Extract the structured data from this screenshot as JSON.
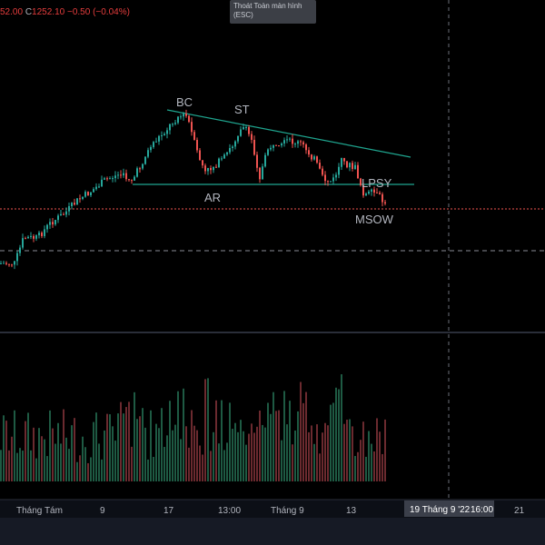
{
  "header": {
    "ohlc_partial": "52.00",
    "close_label": "C",
    "close_value": "1252.10",
    "change_value": "−0.50",
    "change_pct": "(−0.04%)"
  },
  "tooltip": {
    "line1": "Thoát Toàn màn hình",
    "line2": "(ESC)"
  },
  "annotations": [
    "BC",
    "ST",
    "AR",
    "LPSY",
    "MSOW"
  ],
  "x_axis": {
    "ticks": [
      "Tháng Tám",
      "9",
      "17",
      "13:00",
      "Tháng 9",
      "13",
      "21"
    ],
    "crosshair_label": "19 Tháng 9 '22",
    "crosshair_time": "16:00"
  },
  "colors": {
    "up": "#26a69a",
    "down": "#ef5350",
    "volume_up": "#1e5a43",
    "volume_down": "#6b2a2f",
    "trendline": "#1fa58f",
    "background": "#000000",
    "axis_bg": "#0c0f16",
    "label": "#b2b5be"
  }
}
